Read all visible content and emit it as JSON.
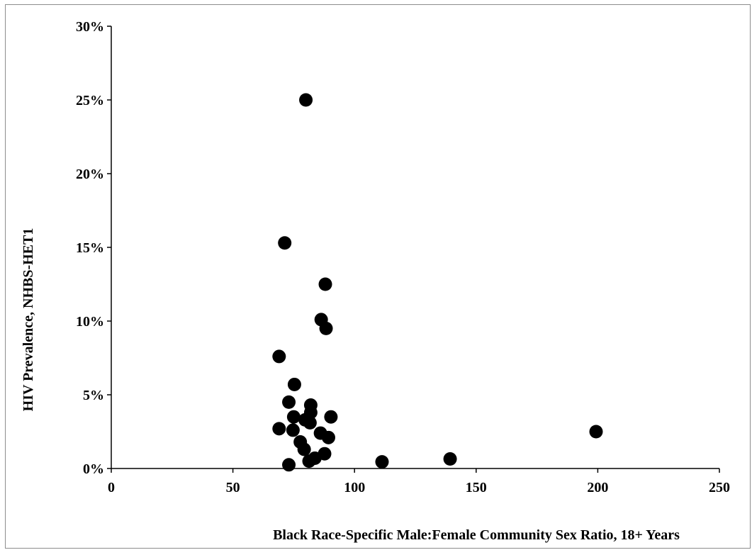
{
  "chart_data": {
    "type": "scatter",
    "title": "",
    "xlabel": "Black Race-Specific Male:Female Community Sex Ratio, 18+ Years",
    "ylabel": "HIV Prevalence, NHBS-HET1",
    "xlim": [
      0,
      250
    ],
    "ylim": [
      0,
      30
    ],
    "x_ticks": [
      "0",
      "50",
      "100",
      "150",
      "200",
      "250"
    ],
    "y_ticks": [
      "0%",
      "5%",
      "10%",
      "15%",
      "20%",
      "25%",
      "30%"
    ],
    "grid": false,
    "legend": "none",
    "marker_color": "#000000",
    "points": [
      {
        "x": 80.0,
        "y": 25.0
      },
      {
        "x": 71.3,
        "y": 15.3
      },
      {
        "x": 88.0,
        "y": 12.5
      },
      {
        "x": 86.3,
        "y": 10.1
      },
      {
        "x": 88.3,
        "y": 9.5
      },
      {
        "x": 69.0,
        "y": 7.6
      },
      {
        "x": 75.3,
        "y": 5.7
      },
      {
        "x": 73.0,
        "y": 4.5
      },
      {
        "x": 82.0,
        "y": 4.3
      },
      {
        "x": 82.0,
        "y": 3.8
      },
      {
        "x": 75.0,
        "y": 3.5
      },
      {
        "x": 90.3,
        "y": 3.5
      },
      {
        "x": 79.7,
        "y": 3.3
      },
      {
        "x": 81.7,
        "y": 3.1
      },
      {
        "x": 69.0,
        "y": 2.7
      },
      {
        "x": 74.7,
        "y": 2.6
      },
      {
        "x": 86.0,
        "y": 2.4
      },
      {
        "x": 89.3,
        "y": 2.1
      },
      {
        "x": 77.7,
        "y": 1.8
      },
      {
        "x": 79.3,
        "y": 1.3
      },
      {
        "x": 87.7,
        "y": 1.0
      },
      {
        "x": 83.7,
        "y": 0.7
      },
      {
        "x": 81.3,
        "y": 0.5
      },
      {
        "x": 73.0,
        "y": 0.25
      },
      {
        "x": 111.3,
        "y": 0.45
      },
      {
        "x": 139.3,
        "y": 0.65
      },
      {
        "x": 199.3,
        "y": 2.5
      }
    ]
  }
}
